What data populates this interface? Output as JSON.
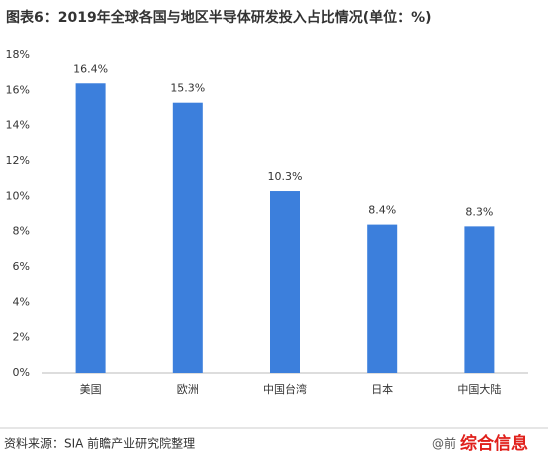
{
  "chart_data": {
    "type": "bar",
    "title": "图表6：2019年全球各国与地区半导体研发投入占比情况(单位：%)",
    "categories": [
      "美国",
      "欧洲",
      "中国台湾",
      "日本",
      "中国大陆"
    ],
    "values": [
      16.4,
      15.3,
      10.3,
      8.4,
      8.3
    ],
    "value_labels": [
      "16.4%",
      "15.3%",
      "10.3%",
      "8.4%",
      "8.3%"
    ],
    "color": "#3c7fdc",
    "ylim": [
      0,
      18
    ],
    "yticks": [
      {
        "value": 0,
        "label": "0%"
      },
      {
        "value": 2,
        "label": "2%"
      },
      {
        "value": 4,
        "label": "4%"
      },
      {
        "value": 6,
        "label": "6%"
      },
      {
        "value": 8,
        "label": "8%"
      },
      {
        "value": 10,
        "label": "10%"
      },
      {
        "value": 12,
        "label": "12%"
      },
      {
        "value": 14,
        "label": "14%"
      },
      {
        "value": 16,
        "label": "16%"
      },
      {
        "value": 18,
        "label": "18%"
      }
    ],
    "grid": false,
    "source": "资料来源：SIA 前瞻产业研究院整理",
    "credit": "@前",
    "watermark": "综合信息"
  }
}
